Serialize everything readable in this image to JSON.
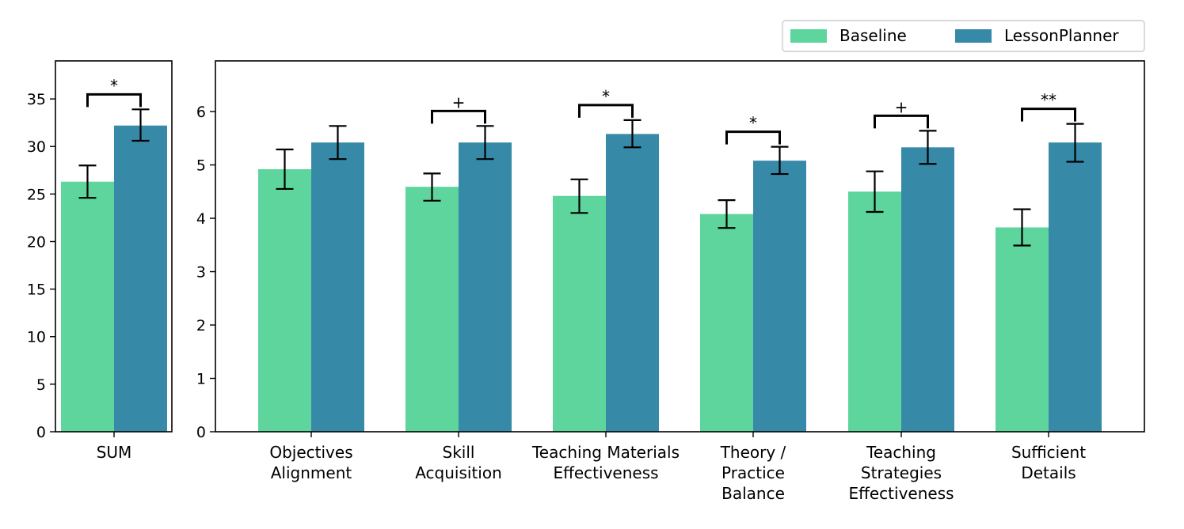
{
  "legend": {
    "placement": "top-right",
    "entries": [
      {
        "name": "Baseline",
        "color": "#5ed59c"
      },
      {
        "name": "LessonPlanner",
        "color": "#3789a8"
      }
    ]
  },
  "chart_data": [
    {
      "type": "bar",
      "categories": [
        "SUM"
      ],
      "series": [
        {
          "name": "Baseline",
          "values": [
            26.3
          ],
          "error_low": [
            24.6
          ],
          "error_high": [
            28.0
          ]
        },
        {
          "name": "LessonPlanner",
          "values": [
            32.2
          ],
          "error_low": [
            30.6
          ],
          "error_high": [
            33.9
          ]
        }
      ],
      "ylim": [
        0,
        39
      ],
      "yticks": [
        0,
        5,
        10,
        15,
        20,
        25,
        30,
        35
      ],
      "significance": [
        "*"
      ],
      "grid": false
    },
    {
      "type": "bar",
      "categories": [
        "Objectives\nAlignment",
        "Skill\nAcquisition",
        "Teaching Materials\nEffectiveness",
        "Theory /\nPractice\nBalance",
        "Teaching\nStrategies\nEffectiveness",
        "Sufficient\nDetails"
      ],
      "series": [
        {
          "name": "Baseline",
          "values": [
            4.92,
            4.59,
            4.42,
            4.08,
            4.5,
            3.83
          ],
          "error_low": [
            4.55,
            4.33,
            4.1,
            3.82,
            4.12,
            3.49
          ],
          "error_high": [
            5.29,
            4.84,
            4.73,
            4.34,
            4.88,
            4.17
          ]
        },
        {
          "name": "LessonPlanner",
          "values": [
            5.42,
            5.42,
            5.58,
            5.08,
            5.33,
            5.42
          ],
          "error_low": [
            5.11,
            5.11,
            5.33,
            4.83,
            5.02,
            5.06
          ],
          "error_high": [
            5.73,
            5.73,
            5.84,
            5.34,
            5.64,
            5.77
          ]
        }
      ],
      "ylim": [
        0,
        6.95
      ],
      "yticks": [
        0,
        1,
        2,
        3,
        4,
        5,
        6
      ],
      "significance": [
        "",
        "+",
        "*",
        "*",
        "+",
        "**"
      ],
      "grid": false
    }
  ]
}
